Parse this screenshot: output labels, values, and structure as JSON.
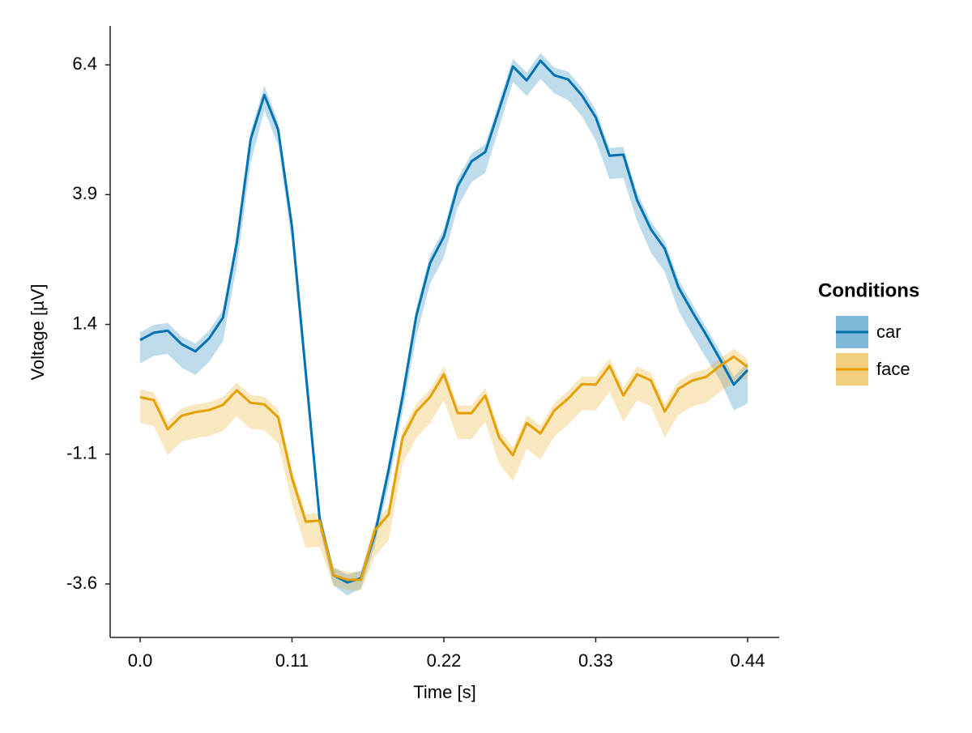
{
  "chart_data": {
    "type": "line_band",
    "xlabel": "Time [s]",
    "ylabel": "Voltage [µV]",
    "legend_title": "Conditions",
    "legend": "right",
    "xlim": [
      -0.0217,
      0.4629
    ],
    "ylim": [
      -4.63,
      7.15
    ],
    "xticks": [
      {
        "value": 0,
        "label": "0.0"
      },
      0.11,
      0.22,
      0.33,
      0.44
    ],
    "yticks": [
      -3.6,
      -1.1,
      1.4,
      3.9,
      6.4
    ],
    "x": [
      0,
      0.01,
      0.02,
      0.03,
      0.04,
      0.05,
      0.06,
      0.07,
      0.08,
      0.09,
      0.1,
      0.11,
      0.12,
      0.13,
      0.14,
      0.15,
      0.16,
      0.17,
      0.18,
      0.19,
      0.2,
      0.21,
      0.22,
      0.23,
      0.24,
      0.25,
      0.26,
      0.27,
      0.28,
      0.29,
      0.3,
      0.31,
      0.32,
      0.33,
      0.34,
      0.35,
      0.36,
      0.37,
      0.38,
      0.39,
      0.4,
      0.41,
      0.42,
      0.43,
      0.44
    ],
    "series": [
      {
        "name": "car",
        "color": "#0072b2",
        "values": [
          1.1,
          1.24,
          1.28,
          1.02,
          0.88,
          1.13,
          1.53,
          2.97,
          4.96,
          5.82,
          5.15,
          3.28,
          0.47,
          -2.34,
          -3.43,
          -3.57,
          -3.49,
          -2.65,
          -1.4,
          0.0,
          1.56,
          2.58,
          3.09,
          4.06,
          4.54,
          4.72,
          5.54,
          6.37,
          6.1,
          6.48,
          6.2,
          6.12,
          5.81,
          5.39,
          4.65,
          4.67,
          3.79,
          3.23,
          2.86,
          2.11,
          1.64,
          1.2,
          0.73,
          0.24,
          0.52
        ],
        "lower": [
          0.65,
          0.79,
          0.83,
          0.57,
          0.43,
          0.68,
          1.08,
          2.52,
          4.51,
          5.52,
          4.85,
          2.98,
          0.17,
          -2.54,
          -3.63,
          -3.82,
          -3.69,
          -2.85,
          -1.7,
          -0.3,
          1.16,
          2.18,
          2.69,
          3.66,
          4.14,
          4.32,
          5.19,
          6.07,
          5.8,
          6.13,
          5.85,
          5.72,
          5.41,
          4.94,
          4.2,
          4.22,
          3.39,
          2.78,
          2.41,
          1.66,
          1.19,
          0.75,
          0.33,
          -0.26,
          -0.12
        ],
        "upper": [
          1.25,
          1.39,
          1.43,
          1.17,
          1.03,
          1.28,
          1.68,
          3.12,
          5.11,
          6.0,
          5.3,
          3.43,
          0.62,
          -2.19,
          -3.28,
          -3.42,
          -3.34,
          -2.5,
          -1.25,
          0.15,
          1.71,
          2.73,
          3.24,
          4.21,
          4.69,
          4.87,
          5.69,
          6.52,
          6.25,
          6.63,
          6.35,
          6.27,
          5.96,
          5.54,
          4.8,
          4.82,
          3.94,
          3.38,
          3.01,
          2.26,
          1.79,
          1.35,
          0.88,
          0.39,
          0.67
        ]
      },
      {
        "name": "face",
        "color": "#e69f00",
        "values": [
          0.0,
          -0.06,
          -0.62,
          -0.36,
          -0.29,
          -0.25,
          -0.15,
          0.13,
          -0.11,
          -0.14,
          -0.39,
          -1.56,
          -2.4,
          -2.38,
          -3.43,
          -3.52,
          -3.52,
          -2.57,
          -2.26,
          -0.79,
          -0.28,
          0.0,
          0.44,
          -0.31,
          -0.31,
          0.03,
          -0.78,
          -1.12,
          -0.5,
          -0.7,
          -0.26,
          -0.03,
          0.25,
          0.24,
          0.6,
          0.03,
          0.44,
          0.32,
          -0.28,
          0.16,
          0.32,
          0.39,
          0.6,
          0.78,
          0.58
        ],
        "lower": [
          -0.5,
          -0.56,
          -1.12,
          -0.86,
          -0.79,
          -0.75,
          -0.65,
          -0.37,
          -0.61,
          -0.64,
          -0.89,
          -2.06,
          -2.9,
          -2.88,
          -3.63,
          -3.72,
          -3.72,
          -3.07,
          -2.76,
          -1.29,
          -0.78,
          -0.5,
          -0.06,
          -0.81,
          -0.81,
          -0.47,
          -1.28,
          -1.62,
          -1.0,
          -1.2,
          -0.76,
          -0.53,
          -0.25,
          -0.26,
          0.1,
          -0.47,
          -0.06,
          -0.18,
          -0.78,
          -0.34,
          -0.18,
          -0.11,
          0.1,
          0.28,
          0.38
        ],
        "upper": [
          0.15,
          0.09,
          -0.47,
          -0.21,
          -0.14,
          -0.1,
          0.0,
          0.28,
          0.04,
          0.01,
          -0.24,
          -1.41,
          -2.25,
          -2.23,
          -3.28,
          -3.37,
          -3.37,
          -2.42,
          -2.11,
          -0.64,
          -0.13,
          0.15,
          0.59,
          -0.16,
          -0.16,
          0.18,
          -0.63,
          -0.97,
          -0.35,
          -0.55,
          -0.11,
          0.12,
          0.4,
          0.39,
          0.75,
          0.18,
          0.59,
          0.47,
          -0.13,
          0.31,
          0.47,
          0.54,
          0.75,
          0.93,
          0.73
        ]
      }
    ]
  }
}
